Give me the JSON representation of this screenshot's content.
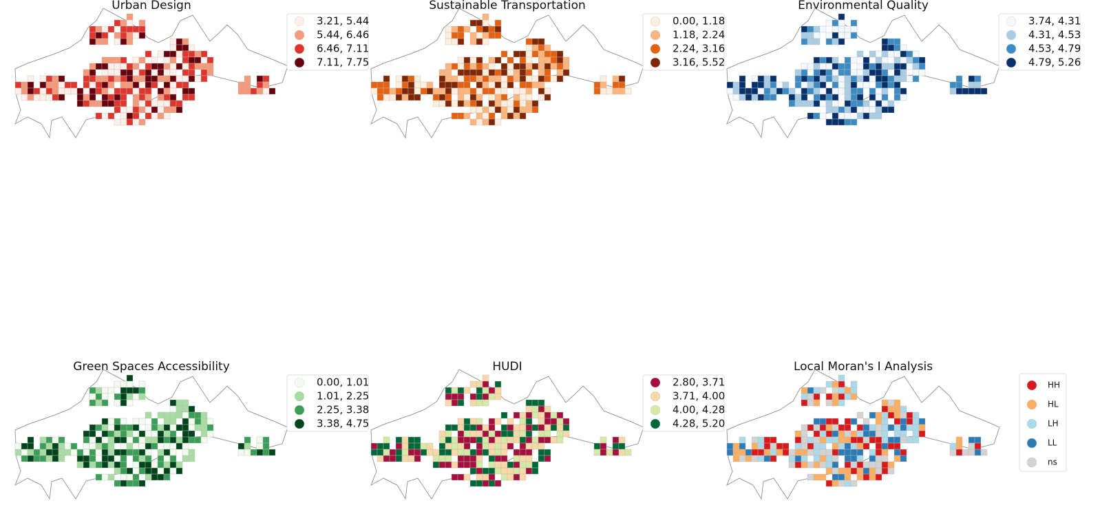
{
  "panels": [
    {
      "title": "Urban Design",
      "legend": [
        {
          "label": "3.21, 5.44",
          "color": "#fdf0ea"
        },
        {
          "label": "5.44, 6.46",
          "color": "#f49a7b"
        },
        {
          "label": "6.46, 7.11",
          "color": "#e0352d"
        },
        {
          "label": "7.11, 7.75",
          "color": "#67000d"
        }
      ]
    },
    {
      "title": "Sustainable Transportation",
      "legend": [
        {
          "label": "0.00, 1.18",
          "color": "#feeede"
        },
        {
          "label": "1.18, 2.24",
          "color": "#fdb57e"
        },
        {
          "label": "2.24, 3.16",
          "color": "#e5600f"
        },
        {
          "label": "3.16, 5.52",
          "color": "#7f2704"
        }
      ]
    },
    {
      "title": "Environmental Quality",
      "legend": [
        {
          "label": "3.74, 4.31",
          "color": "#f2f8fd"
        },
        {
          "label": "4.31, 4.53",
          "color": "#a9cde5"
        },
        {
          "label": "4.53, 4.79",
          "color": "#3c8cc3"
        },
        {
          "label": "4.79, 5.26",
          "color": "#08306b"
        }
      ]
    },
    {
      "title": "Green Spaces Accessibility",
      "legend": [
        {
          "label": "0.00, 1.01",
          "color": "#f3fbf0"
        },
        {
          "label": "1.01, 2.25",
          "color": "#a9dca3"
        },
        {
          "label": "2.25, 3.38",
          "color": "#3a9e56"
        },
        {
          "label": "3.38, 4.75",
          "color": "#00441b"
        }
      ]
    },
    {
      "title": "HUDI",
      "legend": [
        {
          "label": "2.80, 3.71",
          "color": "#a50f3d"
        },
        {
          "label": "3.71, 4.00",
          "color": "#f8d8a6"
        },
        {
          "label": "4.00, 4.28",
          "color": "#d4eaa4"
        },
        {
          "label": "4.28, 5.20",
          "color": "#006837"
        }
      ]
    },
    {
      "title": "Local Moran's I Analysis",
      "legend": [
        {
          "label": "HH",
          "color": "#d7191c"
        },
        {
          "label": "HL",
          "color": "#fdae61"
        },
        {
          "label": "LH",
          "color": "#abd9e9"
        },
        {
          "label": "LL",
          "color": "#2c7bb6"
        },
        {
          "label": "ns",
          "color": "#d3d3d3"
        }
      ]
    }
  ]
}
